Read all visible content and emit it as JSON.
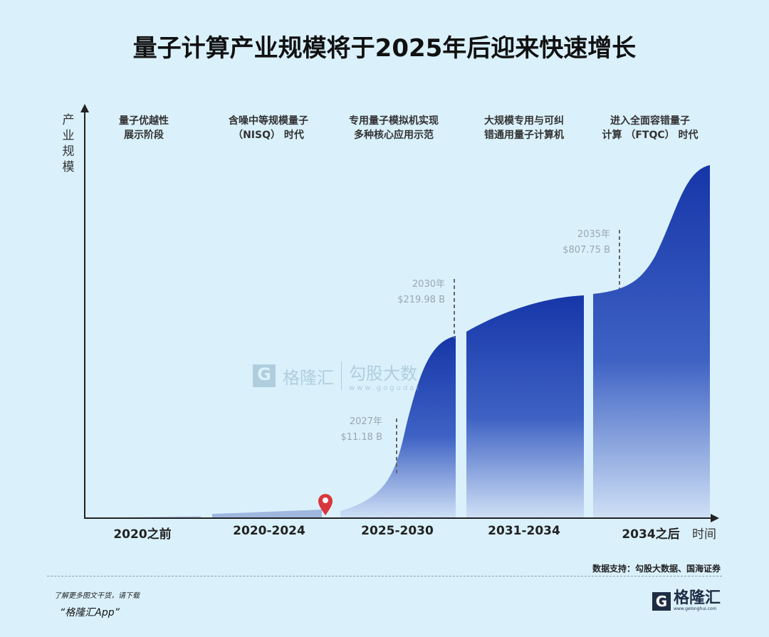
{
  "chart_data": {
    "type": "area",
    "title": "量子计算产业规模将于2025年后迎来快速增长",
    "ylabel": "产业规模",
    "xlabel": "时间",
    "categories": [
      "2020之前",
      "2020-2024",
      "2025-2030",
      "2031-2034",
      "2034之后"
    ],
    "stages": [
      "量子优越性\n展示阶段",
      "含噪中等规模量子\n（NISQ） 时代",
      "专用量子模拟机实现\n多种核心应用示范",
      "大规模专用与可纠\n错通用量子计算机",
      "进入全面容错量子\n计算 （FTQC） 时代"
    ],
    "annotations": [
      {
        "year": "2027年",
        "value": "$11.18 B",
        "x": 2027,
        "y_billion": 11.18
      },
      {
        "year": "2030年",
        "value": "$219.98 B",
        "x": 2030,
        "y_billion": 219.98
      },
      {
        "year": "2035年",
        "value": "$807.75 B",
        "x": 2035,
        "y_billion": 807.75
      }
    ],
    "colors": {
      "area_top": "#1636a8",
      "area_bottom": "#c8dcf4",
      "marker": "#d9363e"
    }
  },
  "footer": {
    "source": "数据支持：勾股大数据、国海证券",
    "promo_line1": "了解更多图文干货，请下载",
    "promo_line2": "“格隆汇App”",
    "logo_text": "格隆汇",
    "logo_url": "www.gelonghui.com"
  },
  "watermark": {
    "brand1": "格隆汇",
    "brand2": "勾股大数",
    "url": "www.gogudat"
  }
}
